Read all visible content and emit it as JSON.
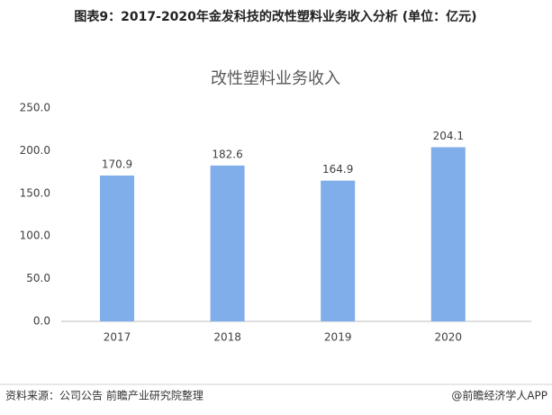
{
  "header": {
    "title": "图表9：2017-2020年金发科技的改性塑料业务收入分析 (单位：亿元)"
  },
  "chart_data": {
    "type": "bar",
    "title": "改性塑料业务收入",
    "categories": [
      "2017",
      "2018",
      "2019",
      "2020"
    ],
    "values": [
      170.9,
      182.6,
      164.9,
      204.1
    ],
    "color": "#7faeea",
    "ylim": [
      0,
      250
    ],
    "yticks": [
      {
        "value": 0,
        "label": "0.0"
      },
      {
        "value": 50,
        "label": "50.0"
      },
      {
        "value": 100,
        "label": "100.0"
      },
      {
        "value": 150,
        "label": "150.0"
      },
      {
        "value": 200,
        "label": "200.0"
      },
      {
        "value": 250,
        "label": "250.0"
      }
    ],
    "grid": false
  },
  "footer": {
    "source": "资料来源：公司公告 前瞻产业研究院整理",
    "credit": "@前瞻经济学人APP"
  }
}
